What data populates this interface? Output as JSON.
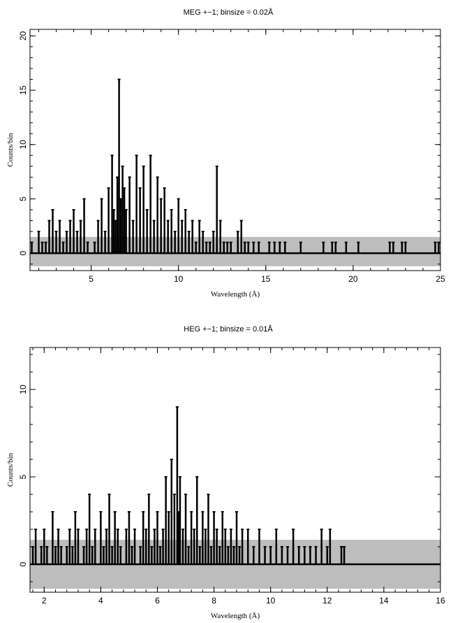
{
  "chart_data": [
    {
      "type": "line",
      "title": "MEG +−1; binsize = 0.02Å",
      "xlabel": "Wavelength (Å)",
      "ylabel": "Counts/bin",
      "xlim": [
        1.5,
        25
      ],
      "ylim": [
        -1.6,
        20.6
      ],
      "x_ticks": [
        5,
        10,
        15,
        20,
        25
      ],
      "y_ticks": [
        0,
        5,
        10,
        15,
        20
      ],
      "grid": false,
      "legend": "none",
      "error_band": {
        "low": -1.2,
        "high": 1.5,
        "color": "#bdbdbd"
      },
      "series": [
        {
          "color": "#000000",
          "x": [
            1.6,
            1.8,
            2.0,
            2.2,
            2.4,
            2.6,
            2.8,
            3.0,
            3.2,
            3.4,
            3.6,
            3.8,
            4.0,
            4.2,
            4.4,
            4.6,
            4.8,
            5.0,
            5.2,
            5.4,
            5.6,
            5.8,
            6.0,
            6.2,
            6.3,
            6.4,
            6.5,
            6.6,
            6.7,
            6.8,
            6.9,
            7.0,
            7.2,
            7.4,
            7.6,
            7.8,
            8.0,
            8.2,
            8.4,
            8.6,
            8.8,
            9.0,
            9.2,
            9.4,
            9.6,
            9.8,
            10.0,
            10.2,
            10.4,
            10.6,
            10.8,
            11.0,
            11.2,
            11.4,
            11.6,
            11.8,
            12.0,
            12.2,
            12.4,
            12.6,
            12.8,
            13.0,
            13.2,
            13.4,
            13.6,
            13.8,
            14.0,
            14.3,
            14.6,
            14.9,
            15.2,
            15.5,
            15.8,
            16.1,
            17.0,
            18.3,
            18.8,
            19.0,
            19.6,
            20.3,
            22.1,
            22.3,
            22.8,
            23.0,
            24.7,
            24.9
          ],
          "y": [
            1,
            0,
            2,
            1,
            1,
            3,
            4,
            2,
            3,
            1,
            2,
            3,
            4,
            2,
            3,
            5,
            1,
            0,
            1,
            3,
            5,
            2,
            6,
            9,
            4,
            3,
            7,
            16,
            5,
            8,
            6,
            4,
            7,
            3,
            9,
            6,
            8,
            4,
            9,
            3,
            7,
            5,
            6,
            3,
            4,
            2,
            5,
            3,
            4,
            2,
            3,
            1,
            3,
            2,
            1,
            1,
            2,
            8,
            3,
            1,
            1,
            1,
            0,
            2,
            3,
            1,
            1,
            1,
            1,
            0,
            1,
            1,
            1,
            1,
            1,
            1,
            1,
            1,
            1,
            1,
            1,
            1,
            1,
            1,
            1,
            1
          ]
        }
      ]
    },
    {
      "type": "line",
      "title": "HEG +−1; binsize = 0.01Å",
      "xlabel": "Wavelength (Å)",
      "ylabel": "Counts/bin",
      "xlim": [
        1.5,
        16
      ],
      "ylim": [
        -1.6,
        12.4
      ],
      "x_ticks": [
        2,
        4,
        6,
        8,
        10,
        12,
        14,
        16
      ],
      "y_ticks": [
        0,
        5,
        10
      ],
      "grid": false,
      "legend": "none",
      "error_band": {
        "low": -1.4,
        "high": 1.4,
        "color": "#bdbdbd"
      },
      "series": [
        {
          "color": "#000000",
          "x": [
            1.6,
            1.7,
            1.8,
            1.9,
            2.0,
            2.1,
            2.2,
            2.3,
            2.4,
            2.5,
            2.6,
            2.7,
            2.8,
            2.9,
            3.0,
            3.1,
            3.2,
            3.3,
            3.4,
            3.5,
            3.6,
            3.7,
            3.8,
            3.9,
            4.0,
            4.1,
            4.2,
            4.3,
            4.4,
            4.5,
            4.6,
            4.7,
            4.8,
            4.9,
            5.0,
            5.1,
            5.2,
            5.3,
            5.4,
            5.5,
            5.6,
            5.7,
            5.8,
            5.9,
            6.0,
            6.1,
            6.2,
            6.3,
            6.4,
            6.5,
            6.6,
            6.7,
            6.75,
            6.8,
            6.9,
            7.0,
            7.1,
            7.2,
            7.3,
            7.4,
            7.5,
            7.6,
            7.7,
            7.8,
            7.9,
            8.0,
            8.1,
            8.2,
            8.3,
            8.4,
            8.5,
            8.6,
            8.7,
            8.8,
            8.9,
            9.0,
            9.2,
            9.4,
            9.6,
            9.8,
            10.0,
            10.2,
            10.4,
            10.6,
            10.8,
            11.0,
            11.2,
            11.4,
            11.6,
            11.8,
            12.0,
            12.1,
            12.3,
            12.5,
            12.6
          ],
          "y": [
            1,
            2,
            0,
            1,
            2,
            1,
            0,
            3,
            1,
            2,
            1,
            0,
            1,
            2,
            1,
            3,
            2,
            0,
            1,
            2,
            4,
            1,
            2,
            0,
            3,
            1,
            2,
            4,
            1,
            3,
            2,
            1,
            0,
            2,
            3,
            1,
            2,
            0,
            1,
            3,
            2,
            4,
            1,
            2,
            3,
            1,
            2,
            5,
            3,
            6,
            4,
            9,
            3,
            5,
            2,
            4,
            1,
            3,
            2,
            5,
            1,
            3,
            2,
            4,
            1,
            3,
            2,
            1,
            3,
            2,
            1,
            2,
            1,
            3,
            1,
            2,
            2,
            1,
            2,
            1,
            1,
            2,
            1,
            1,
            2,
            1,
            1,
            1,
            1,
            2,
            1,
            2,
            0,
            1,
            1
          ]
        }
      ]
    }
  ]
}
